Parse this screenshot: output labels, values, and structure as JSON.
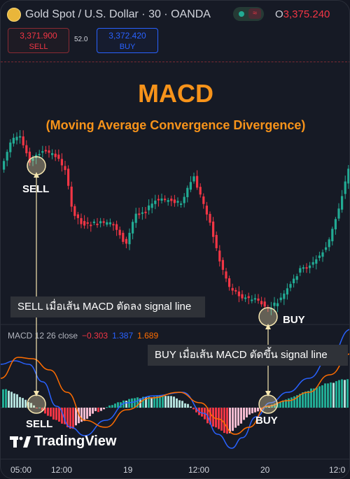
{
  "header": {
    "symbol": "Gold Spot / U.S. Dollar · 30 · OANDA",
    "ohlc_key": "O",
    "ohlc_value": "3,375.240"
  },
  "trade": {
    "sell_price": "3,371.900",
    "sell_label": "SELL",
    "spread": "52.0",
    "buy_price": "3,372.420",
    "buy_label": "BUY"
  },
  "overlay": {
    "title": "MACD",
    "subtitle": "(Moving Average Convergence Divergence)",
    "sell_marker_label": "SELL",
    "buy_marker_label": "BUY",
    "sell_note": "SELL เมื่อเส้น MACD ตัดลง signal line",
    "buy_note": "BUY เมื่อเส้น MACD ตัดขึ้น signal line"
  },
  "macd": {
    "name": "MACD 12 26 close",
    "histogram": "−0.303",
    "macd_line": "1.387",
    "signal_line": "1.689"
  },
  "brand": "TradingView",
  "xaxis": [
    "05:00",
    "12:00",
    "19",
    "12:00",
    "20",
    "12:0"
  ],
  "colors": {
    "up": "#22ab94",
    "down": "#f23645",
    "macd_line": "#2962ff",
    "signal_line": "#ff6d00",
    "accent": "#f7931a"
  }
}
